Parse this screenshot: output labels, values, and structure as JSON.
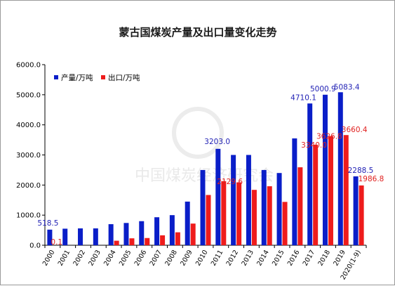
{
  "chart_data": {
    "type": "bar",
    "title": "蒙古国煤炭产量及出口量变化走势",
    "categories": [
      "2000",
      "2001",
      "2002",
      "2003",
      "2004",
      "2005",
      "2006",
      "2007",
      "2008",
      "2009",
      "2010",
      "2011",
      "2012",
      "2013",
      "2014",
      "2015",
      "2016",
      "2017",
      "2018",
      "2019",
      "2020(1-9)"
    ],
    "series": [
      {
        "name": "产量/万吨",
        "color": "#0a1ec8",
        "values": [
          518.5,
          550,
          560,
          560,
          700,
          740,
          800,
          930,
          1000,
          1450,
          2500,
          3203.0,
          3000,
          3000,
          2500,
          2400,
          3550,
          4710.1,
          5000.9,
          5083.4,
          2288.5
        ]
      },
      {
        "name": "出口/万吨",
        "color": "#ee1c1c",
        "values": [
          0.1,
          0,
          0,
          0,
          150,
          230,
          240,
          330,
          430,
          720,
          1670,
          2129.6,
          2090,
          1840,
          1960,
          1440,
          2590,
          3340.0,
          3626.8,
          3660.4,
          1986.8
        ]
      }
    ],
    "data_labels": {
      "产量/万吨": [
        {
          "index": 0,
          "text": "518.5"
        },
        {
          "index": 11,
          "text": "3203.0"
        },
        {
          "index": 17,
          "text": "4710.1"
        },
        {
          "index": 18,
          "text": "5000.9"
        },
        {
          "index": 19,
          "text": "5083.4"
        },
        {
          "index": 20,
          "text": "2288.5"
        }
      ],
      "出口/万吨": [
        {
          "index": 0,
          "text": "0.1"
        },
        {
          "index": 11,
          "text": "2129.6"
        },
        {
          "index": 17,
          "text": "3340.0"
        },
        {
          "index": 18,
          "text": "3626.8"
        },
        {
          "index": 19,
          "text": "3660.4"
        },
        {
          "index": 20,
          "text": "1986.8"
        }
      ]
    },
    "yticks": [
      "0.0",
      "1000.0",
      "2000.0",
      "3000.0",
      "4000.0",
      "5000.0",
      "6000.0"
    ],
    "ylim": [
      0,
      6000
    ],
    "xlabel": "",
    "ylabel": "",
    "grid": false,
    "legend_position": "top-left"
  },
  "watermark": "中国煤炭经济研究会"
}
